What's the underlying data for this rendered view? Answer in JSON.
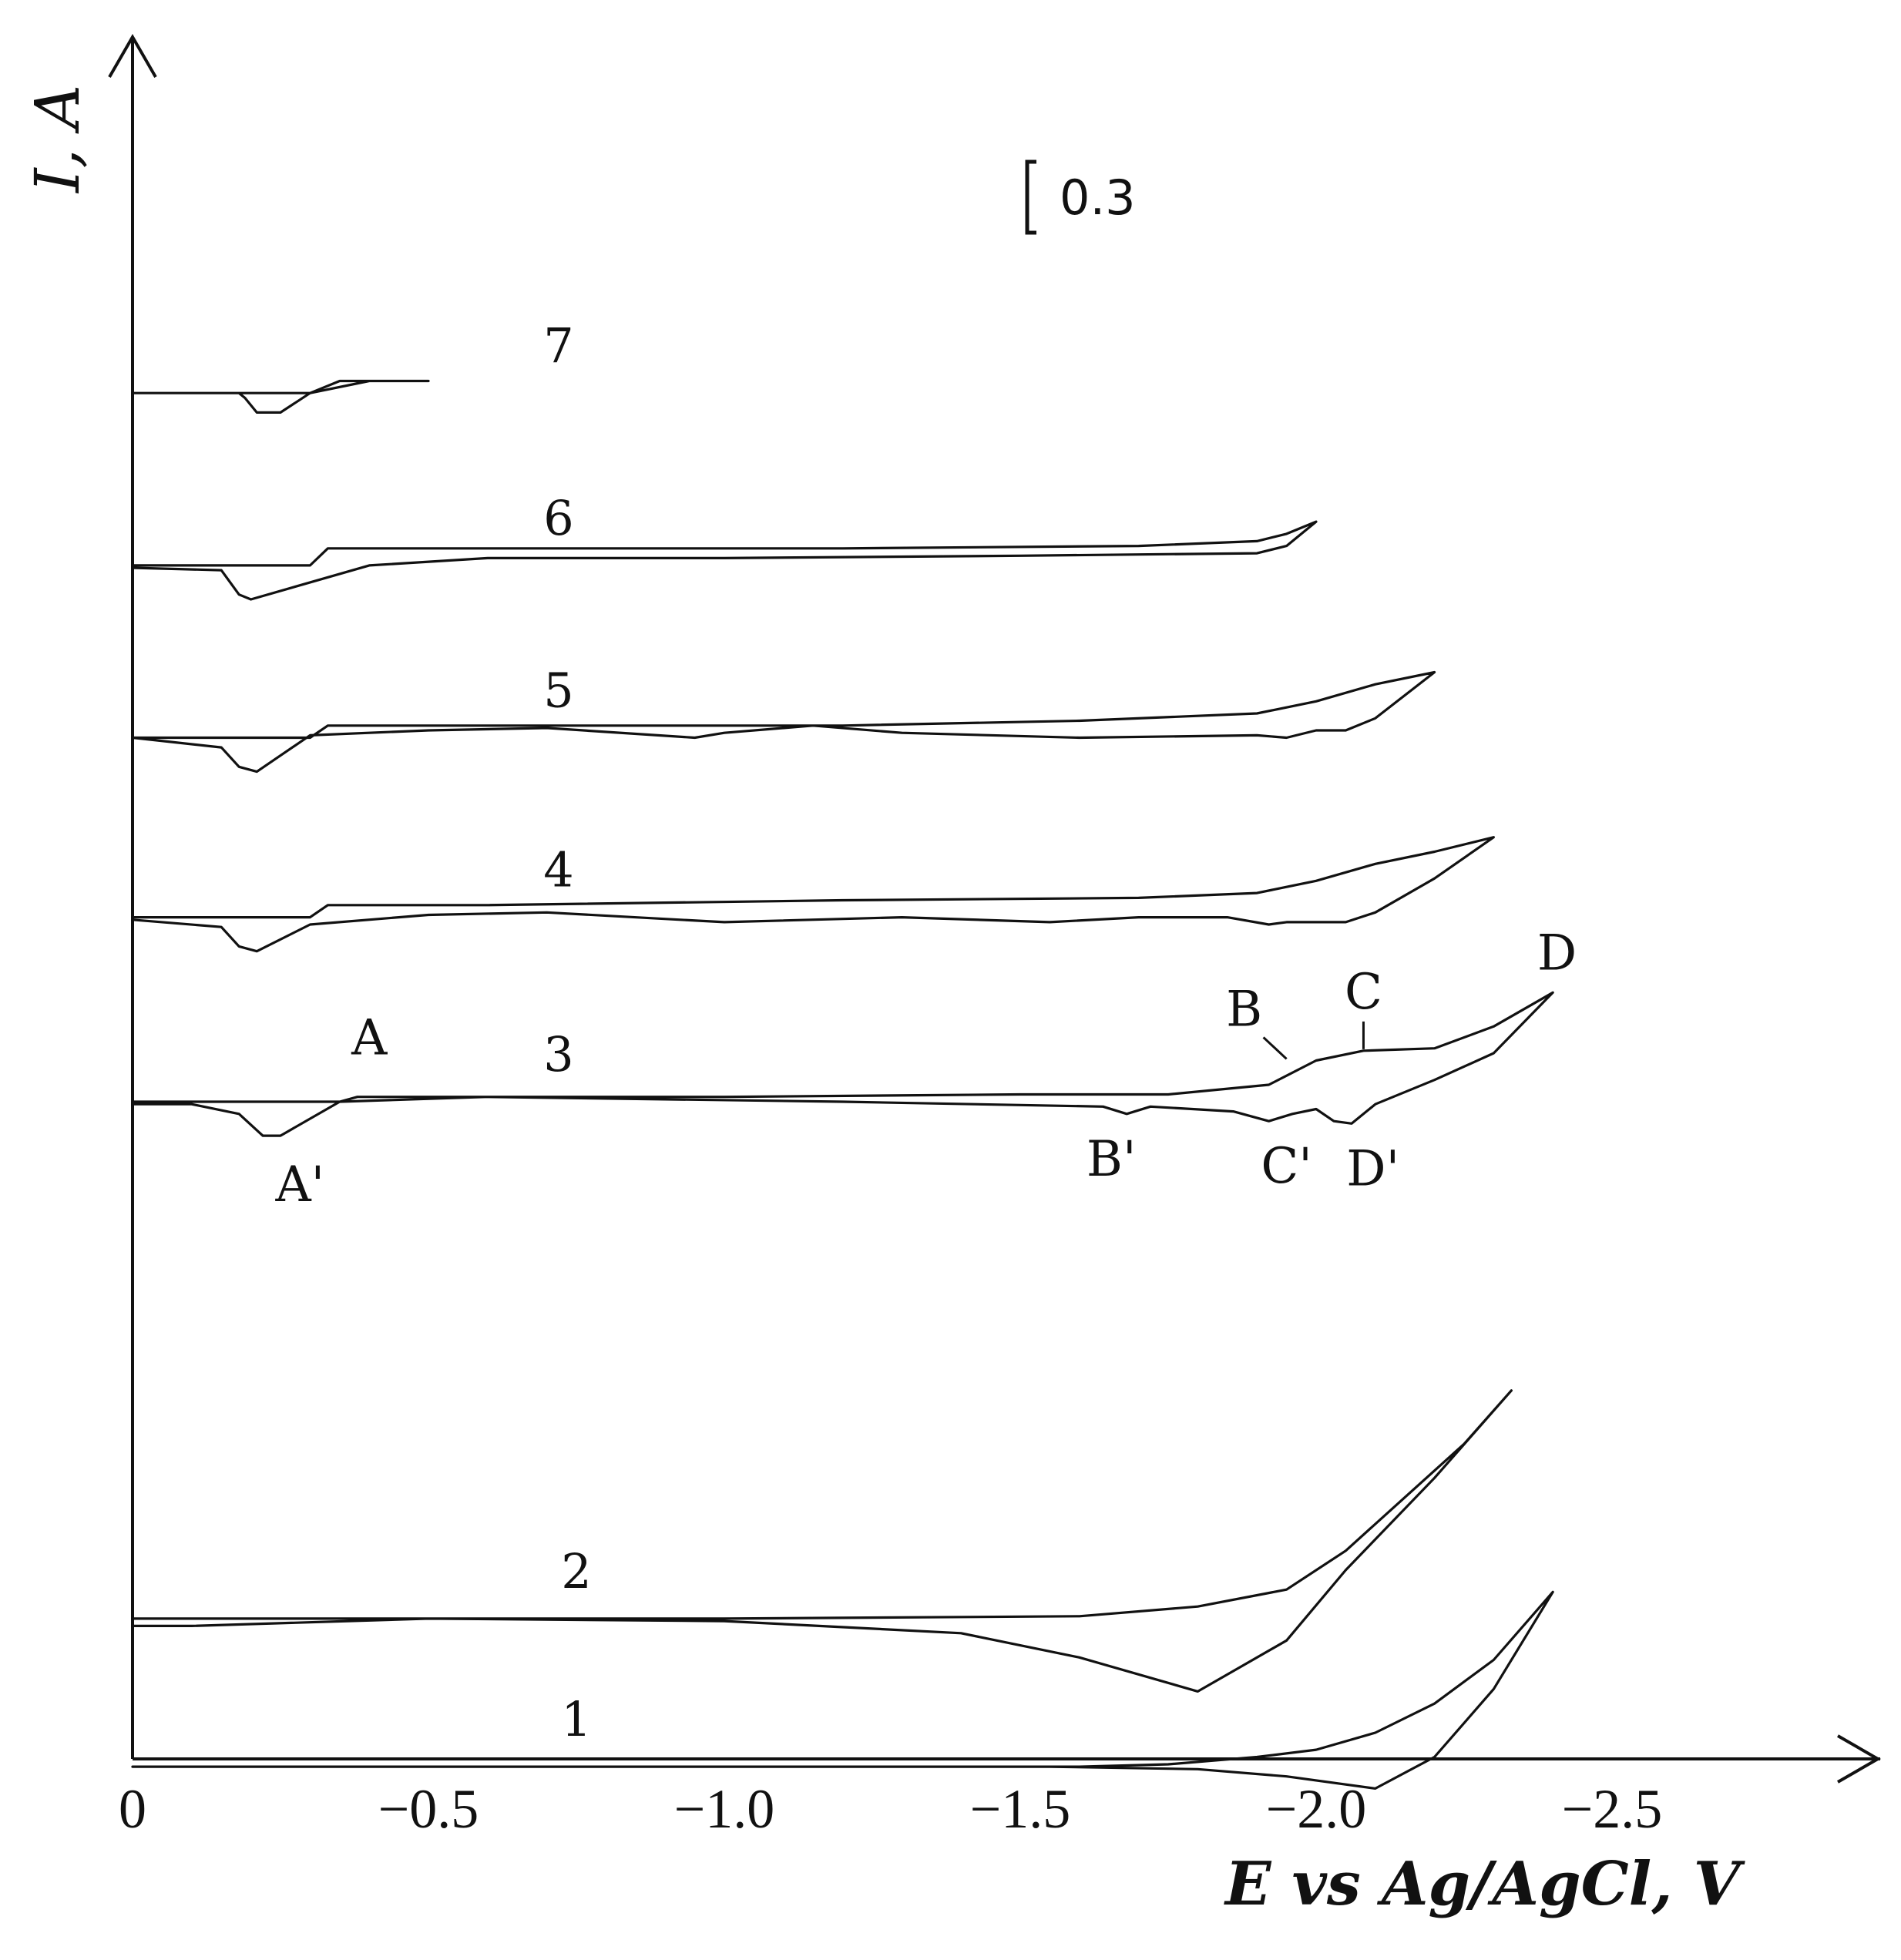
{
  "chart_data": {
    "type": "line",
    "title": "",
    "xlabel": "E vs Ag/AgCl, V",
    "ylabel": "I, A",
    "xlim": [
      0,
      -2.9
    ],
    "x_ticks": [
      {
        "value": 0,
        "label": "0"
      },
      {
        "value": -0.5,
        "label": "−0.5"
      },
      {
        "value": -1.0,
        "label": "−1.0"
      },
      {
        "value": -1.5,
        "label": "−1.5"
      },
      {
        "value": -2.0,
        "label": "−2.0"
      },
      {
        "value": -2.5,
        "label": "−2.5"
      }
    ],
    "scale_bar": {
      "value": 0.3,
      "label": "0.3"
    },
    "grid": false,
    "series": [
      {
        "name": "1",
        "baseline": -2.74,
        "forward": [
          [
            0,
            0
          ],
          [
            -1.6,
            0
          ],
          [
            -1.75,
            0.01
          ],
          [
            -1.9,
            0.04
          ],
          [
            -2.0,
            0.07
          ],
          [
            -2.1,
            0.14
          ],
          [
            -2.2,
            0.26
          ],
          [
            -2.3,
            0.44
          ],
          [
            -2.4,
            0.72
          ]
        ],
        "reverse": [
          [
            -2.4,
            0.72
          ],
          [
            -2.3,
            0.32
          ],
          [
            -2.2,
            0.04
          ],
          [
            -2.1,
            -0.09
          ],
          [
            -1.95,
            -0.04
          ],
          [
            -1.8,
            -0.01
          ],
          [
            -1.55,
            0
          ],
          [
            0,
            0
          ]
        ]
      },
      {
        "name": "2",
        "baseline": -2.13,
        "forward": [
          [
            0,
            0
          ],
          [
            -1.0,
            0
          ],
          [
            -1.6,
            0.01
          ],
          [
            -1.8,
            0.05
          ],
          [
            -1.95,
            0.12
          ],
          [
            -2.05,
            0.28
          ],
          [
            -2.15,
            0.5
          ],
          [
            -2.25,
            0.72
          ],
          [
            -2.33,
            0.94
          ]
        ],
        "reverse": [
          [
            -2.33,
            0.94
          ],
          [
            -2.2,
            0.58
          ],
          [
            -2.05,
            0.2
          ],
          [
            -1.95,
            -0.09
          ],
          [
            -1.8,
            -0.3
          ],
          [
            -1.6,
            -0.16
          ],
          [
            -1.4,
            -0.06
          ],
          [
            -1.0,
            -0.01
          ],
          [
            -0.5,
            0.0
          ],
          [
            -0.1,
            -0.03
          ],
          [
            0,
            -0.03
          ]
        ]
      },
      {
        "name": "3",
        "baseline": -0.0,
        "forward": [
          [
            0,
            0
          ],
          [
            -0.35,
            0
          ],
          [
            -0.38,
            0.02
          ],
          [
            -0.6,
            0.02
          ],
          [
            -1.0,
            0.02
          ],
          [
            -1.5,
            0.03
          ],
          [
            -1.75,
            0.03
          ],
          [
            -1.92,
            0.07
          ],
          [
            -2.0,
            0.17
          ],
          [
            -2.08,
            0.21
          ],
          [
            -2.2,
            0.22
          ],
          [
            -2.3,
            0.31
          ],
          [
            -2.4,
            0.45
          ]
        ],
        "reverse": [
          [
            -2.4,
            0.45
          ],
          [
            -2.3,
            0.2
          ],
          [
            -2.2,
            0.09
          ],
          [
            -2.1,
            -0.01
          ],
          [
            -2.06,
            -0.09
          ],
          [
            -2.03,
            -0.08
          ],
          [
            -2.0,
            -0.03
          ],
          [
            -1.96,
            -0.05
          ],
          [
            -1.92,
            -0.08
          ],
          [
            -1.86,
            -0.04
          ],
          [
            -1.72,
            -0.02
          ],
          [
            -1.68,
            -0.05
          ],
          [
            -1.64,
            -0.02
          ],
          [
            -1.2,
            0.0
          ],
          [
            -0.6,
            0.02
          ],
          [
            -0.35,
            0.0
          ],
          [
            -0.25,
            -0.14
          ],
          [
            -0.22,
            -0.14
          ],
          [
            -0.18,
            -0.05
          ],
          [
            -0.1,
            -0.01
          ],
          [
            0,
            -0.01
          ]
        ]
      },
      {
        "name": "4",
        "baseline": 0.76,
        "forward": [
          [
            0,
            0
          ],
          [
            -0.3,
            0
          ],
          [
            -0.33,
            0.05
          ],
          [
            -0.6,
            0.05
          ],
          [
            -1.2,
            0.07
          ],
          [
            -1.7,
            0.08
          ],
          [
            -1.9,
            0.1
          ],
          [
            -2.0,
            0.15
          ],
          [
            -2.1,
            0.22
          ],
          [
            -2.2,
            0.27
          ],
          [
            -2.3,
            0.33
          ]
        ],
        "reverse": [
          [
            -2.3,
            0.33
          ],
          [
            -2.2,
            0.16
          ],
          [
            -2.1,
            0.02
          ],
          [
            -2.05,
            -0.02
          ],
          [
            -2.0,
            -0.02
          ],
          [
            -1.95,
            -0.02
          ],
          [
            -1.92,
            -0.03
          ],
          [
            -1.85,
            -0.0
          ],
          [
            -1.7,
            -0.0
          ],
          [
            -1.55,
            -0.02
          ],
          [
            -1.3,
            0.0
          ],
          [
            -1.0,
            -0.02
          ],
          [
            -0.7,
            0.02
          ],
          [
            -0.5,
            0.01
          ],
          [
            -0.3,
            -0.03
          ],
          [
            -0.21,
            -0.14
          ],
          [
            -0.18,
            -0.12
          ],
          [
            -0.15,
            -0.04
          ],
          [
            0,
            -0.01
          ]
        ]
      },
      {
        "name": "5",
        "baseline": 1.5,
        "forward": [
          [
            0,
            0
          ],
          [
            -0.3,
            0
          ],
          [
            -0.33,
            0.05
          ],
          [
            -0.6,
            0.05
          ],
          [
            -1.2,
            0.05
          ],
          [
            -1.6,
            0.07
          ],
          [
            -1.9,
            0.1
          ],
          [
            -2.0,
            0.15
          ],
          [
            -2.1,
            0.22
          ],
          [
            -2.2,
            0.27
          ]
        ],
        "reverse": [
          [
            -2.2,
            0.27
          ],
          [
            -2.1,
            0.08
          ],
          [
            -2.05,
            0.03
          ],
          [
            -2.0,
            0.03
          ],
          [
            -1.95,
            0.0
          ],
          [
            -1.9,
            0.01
          ],
          [
            -1.6,
            0.0
          ],
          [
            -1.3,
            0.02
          ],
          [
            -1.15,
            0.05
          ],
          [
            -1.0,
            0.02
          ],
          [
            -0.95,
            0.0
          ],
          [
            -0.7,
            0.04
          ],
          [
            -0.5,
            0.03
          ],
          [
            -0.3,
            0.01
          ],
          [
            -0.21,
            -0.14
          ],
          [
            -0.18,
            -0.12
          ],
          [
            -0.15,
            -0.04
          ],
          [
            0,
            0.0
          ]
        ]
      },
      {
        "name": "6",
        "baseline": 2.21,
        "forward": [
          [
            0,
            0
          ],
          [
            -0.3,
            0
          ],
          [
            -0.33,
            0.07
          ],
          [
            -0.6,
            0.07
          ],
          [
            -1.2,
            0.07
          ],
          [
            -1.7,
            0.08
          ],
          [
            -1.9,
            0.1
          ],
          [
            -1.95,
            0.13
          ],
          [
            -2.0,
            0.18
          ]
        ],
        "reverse": [
          [
            -2.0,
            0.18
          ],
          [
            -1.95,
            0.08
          ],
          [
            -1.9,
            0.05
          ],
          [
            -1.5,
            0.04
          ],
          [
            -1.0,
            0.03
          ],
          [
            -0.6,
            0.03
          ],
          [
            -0.4,
            0.0
          ],
          [
            -0.2,
            -0.14
          ],
          [
            -0.18,
            -0.12
          ],
          [
            -0.15,
            -0.02
          ],
          [
            0,
            -0.01
          ]
        ]
      },
      {
        "name": "7",
        "baseline": 2.92,
        "forward": [
          [
            0,
            0
          ],
          [
            -0.2,
            0
          ],
          [
            -0.3,
            0.0
          ],
          [
            -0.35,
            0.05
          ],
          [
            -0.5,
            0.05
          ]
        ],
        "reverse": [
          [
            -0.5,
            0.05
          ],
          [
            -0.4,
            0.05
          ],
          [
            -0.3,
            0.0
          ],
          [
            -0.25,
            -0.08
          ],
          [
            -0.21,
            -0.08
          ],
          [
            -0.19,
            -0.02
          ],
          [
            -0.18,
            0.0
          ],
          [
            0,
            0.0
          ]
        ]
      }
    ],
    "annotations": [
      {
        "series": "3",
        "label": "A",
        "x": -0.4,
        "y": 0.02
      },
      {
        "series": "3",
        "label": "A'",
        "x": -0.27,
        "y": -0.14
      },
      {
        "series": "3",
        "label": "B",
        "x": -1.95,
        "y": 0.17
      },
      {
        "series": "3",
        "label": "C",
        "x": -2.08,
        "y": 0.21
      },
      {
        "series": "3",
        "label": "D",
        "x": -2.42,
        "y": 0.45
      },
      {
        "series": "3",
        "label": "B'",
        "x": -1.68,
        "y": -0.05
      },
      {
        "series": "3",
        "label": "C'",
        "x": -1.95,
        "y": -0.08
      },
      {
        "series": "3",
        "label": "D'",
        "x": -2.07,
        "y": -0.09
      }
    ]
  }
}
